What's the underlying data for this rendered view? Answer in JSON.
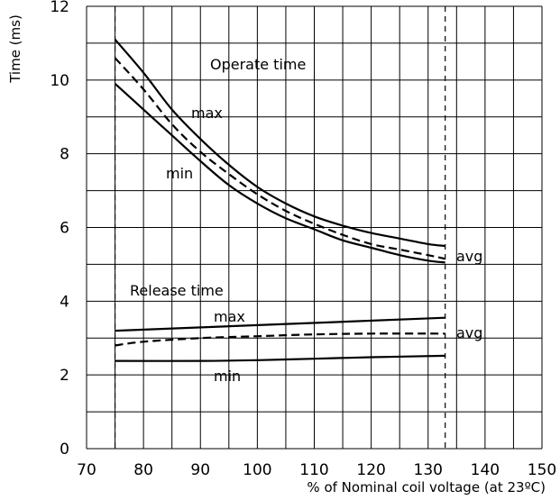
{
  "chart_data": {
    "type": "line",
    "xlabel": "% of Nominal coil voltage (at 23ºC)",
    "ylabel": "Time (ms)",
    "xlim": [
      70,
      150
    ],
    "ylim": [
      0,
      12
    ],
    "x_ticks": [
      70,
      80,
      90,
      100,
      110,
      120,
      130,
      140,
      150
    ],
    "y_ticks": [
      0,
      2,
      4,
      6,
      8,
      10,
      12
    ],
    "grid": true,
    "legend": "none",
    "reference_lines_x": [
      75,
      133
    ],
    "annotations": {
      "operate_group": "Operate time",
      "release_group": "Release time",
      "operate_max": "max",
      "operate_min": "min",
      "operate_avg": "avg",
      "release_max": "max",
      "release_min": "min",
      "release_avg": "avg"
    },
    "series": [
      {
        "group": "Operate time",
        "name": "max",
        "style": "solid",
        "x": [
          75,
          80,
          85,
          90,
          95,
          100,
          105,
          110,
          115,
          120,
          125,
          130,
          133
        ],
        "y": [
          11.1,
          10.2,
          9.2,
          8.4,
          7.7,
          7.1,
          6.65,
          6.3,
          6.05,
          5.85,
          5.7,
          5.55,
          5.5
        ]
      },
      {
        "group": "Operate time",
        "name": "avg",
        "style": "dashed",
        "x": [
          75,
          80,
          85,
          90,
          95,
          100,
          105,
          110,
          115,
          120,
          125,
          130,
          133
        ],
        "y": [
          10.6,
          9.75,
          8.8,
          8.05,
          7.45,
          6.9,
          6.45,
          6.1,
          5.8,
          5.55,
          5.4,
          5.25,
          5.15
        ]
      },
      {
        "group": "Operate time",
        "name": "min",
        "style": "solid",
        "x": [
          75,
          80,
          85,
          90,
          95,
          100,
          105,
          110,
          115,
          120,
          125,
          130,
          133
        ],
        "y": [
          9.9,
          9.2,
          8.5,
          7.8,
          7.15,
          6.65,
          6.25,
          5.95,
          5.65,
          5.45,
          5.25,
          5.1,
          5.05
        ]
      },
      {
        "group": "Release time",
        "name": "max",
        "style": "solid",
        "x": [
          75,
          133
        ],
        "y": [
          3.2,
          3.55
        ]
      },
      {
        "group": "Release time",
        "name": "avg",
        "style": "dashed",
        "x": [
          75,
          80,
          90,
          100,
          110,
          120,
          133
        ],
        "y": [
          2.8,
          2.9,
          3.0,
          3.05,
          3.1,
          3.12,
          3.12
        ]
      },
      {
        "group": "Release time",
        "name": "min",
        "style": "solid",
        "x": [
          75,
          90,
          100,
          110,
          120,
          133
        ],
        "y": [
          2.38,
          2.38,
          2.4,
          2.44,
          2.48,
          2.52
        ]
      }
    ]
  }
}
